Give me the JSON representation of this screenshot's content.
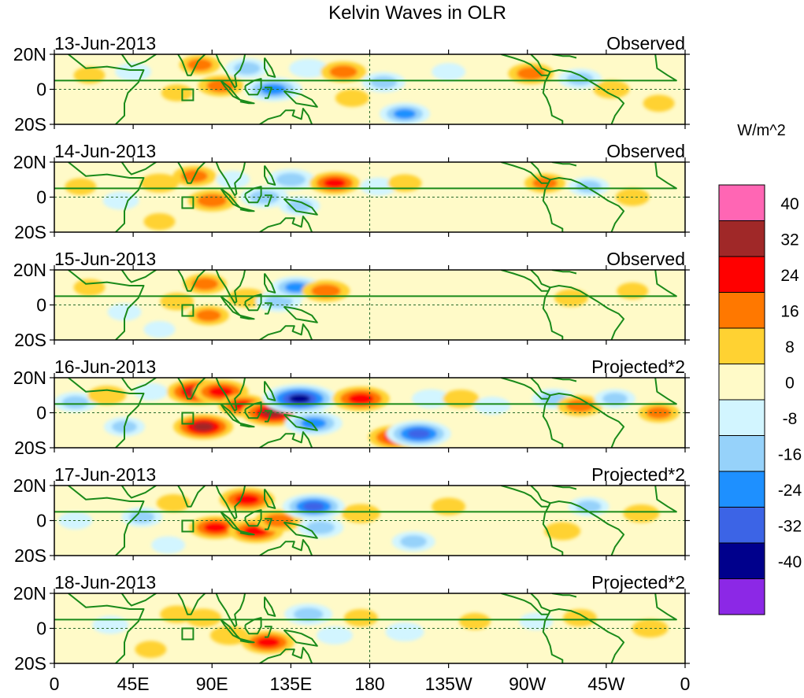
{
  "chart_data": {
    "type": "heatmap",
    "title": "Kelvin Waves in OLR",
    "units": "W/m^2",
    "x_ticks": [
      "0",
      "45E",
      "90E",
      "135E",
      "180",
      "135W",
      "90W",
      "45W",
      "0"
    ],
    "y_ticks": [
      "20N",
      "0",
      "20S"
    ],
    "colorbar": {
      "levels": [
        40,
        32,
        24,
        16,
        8,
        0,
        -8,
        -16,
        -24,
        -32,
        -40
      ],
      "level_labels": [
        "40",
        "32",
        "24",
        "16",
        "8",
        "0",
        "-8",
        "-16",
        "-24",
        "-32",
        "-40"
      ],
      "colors": [
        "#ff66b4",
        "#a02828",
        "#ff0000",
        "#ff7800",
        "#ffd232",
        "#fffac8",
        "#d2f5ff",
        "#96d2fa",
        "#1e90ff",
        "#3c64e6",
        "#00008c",
        "#8c28e6"
      ]
    },
    "panels": [
      {
        "date": "13-Jun-2013",
        "label": "Observed",
        "anomalies": [
          {
            "lon": 20,
            "lat": 8,
            "value": 8
          },
          {
            "lon": 45,
            "lat": 10,
            "value": -12
          },
          {
            "lon": 70,
            "lat": -2,
            "value": 8
          },
          {
            "lon": 83,
            "lat": 14,
            "value": 16
          },
          {
            "lon": 95,
            "lat": 2,
            "value": 20
          },
          {
            "lon": 110,
            "lat": 12,
            "value": -18
          },
          {
            "lon": 125,
            "lat": 0,
            "value": -30
          },
          {
            "lon": 145,
            "lat": 12,
            "value": -14
          },
          {
            "lon": 165,
            "lat": 10,
            "value": 20
          },
          {
            "lon": 170,
            "lat": -5,
            "value": 10
          },
          {
            "lon": 188,
            "lat": 4,
            "value": -18
          },
          {
            "lon": 200,
            "lat": -14,
            "value": -24
          },
          {
            "lon": 225,
            "lat": 10,
            "value": -10
          },
          {
            "lon": 250,
            "lat": -5,
            "value": 6
          },
          {
            "lon": 272,
            "lat": 9,
            "value": 20
          },
          {
            "lon": 300,
            "lat": 6,
            "value": -18
          },
          {
            "lon": 318,
            "lat": 0,
            "value": 12
          },
          {
            "lon": 345,
            "lat": -8,
            "value": 8
          }
        ]
      },
      {
        "date": "14-Jun-2013",
        "label": "Observed",
        "anomalies": [
          {
            "lon": 15,
            "lat": 6,
            "value": 8
          },
          {
            "lon": 38,
            "lat": -2,
            "value": -12
          },
          {
            "lon": 60,
            "lat": 8,
            "value": 14
          },
          {
            "lon": 80,
            "lat": 12,
            "value": 18
          },
          {
            "lon": 90,
            "lat": -2,
            "value": 22
          },
          {
            "lon": 102,
            "lat": 10,
            "value": -10
          },
          {
            "lon": 120,
            "lat": 0,
            "value": -22
          },
          {
            "lon": 135,
            "lat": 10,
            "value": -22
          },
          {
            "lon": 140,
            "lat": -5,
            "value": -16
          },
          {
            "lon": 160,
            "lat": 8,
            "value": 24
          },
          {
            "lon": 185,
            "lat": 6,
            "value": -12
          },
          {
            "lon": 200,
            "lat": 8,
            "value": 10
          },
          {
            "lon": 240,
            "lat": -6,
            "value": 6
          },
          {
            "lon": 280,
            "lat": 8,
            "value": 16
          },
          {
            "lon": 305,
            "lat": 6,
            "value": -16
          },
          {
            "lon": 330,
            "lat": 0,
            "value": 10
          },
          {
            "lon": 60,
            "lat": -14,
            "value": 8
          }
        ]
      },
      {
        "date": "15-Jun-2013",
        "label": "Observed",
        "anomalies": [
          {
            "lon": 20,
            "lat": 10,
            "value": 8
          },
          {
            "lon": 40,
            "lat": -4,
            "value": -10
          },
          {
            "lon": 70,
            "lat": 2,
            "value": 10
          },
          {
            "lon": 86,
            "lat": 12,
            "value": 18
          },
          {
            "lon": 88,
            "lat": -6,
            "value": 16
          },
          {
            "lon": 110,
            "lat": 4,
            "value": 14
          },
          {
            "lon": 128,
            "lat": 2,
            "value": -20
          },
          {
            "lon": 138,
            "lat": 10,
            "value": -24
          },
          {
            "lon": 155,
            "lat": 8,
            "value": 22
          },
          {
            "lon": 175,
            "lat": 0,
            "value": -6
          },
          {
            "lon": 240,
            "lat": 4,
            "value": 4
          },
          {
            "lon": 295,
            "lat": 4,
            "value": 10
          },
          {
            "lon": 330,
            "lat": 8,
            "value": 8
          },
          {
            "lon": 60,
            "lat": -14,
            "value": -8
          }
        ]
      },
      {
        "date": "16-Jun-2013",
        "label": "Projected*2",
        "anomalies": [
          {
            "lon": 12,
            "lat": 6,
            "value": -18
          },
          {
            "lon": 30,
            "lat": 10,
            "value": 14
          },
          {
            "lon": 40,
            "lat": -8,
            "value": -16
          },
          {
            "lon": 55,
            "lat": 12,
            "value": -10
          },
          {
            "lon": 82,
            "lat": 12,
            "value": 34
          },
          {
            "lon": 95,
            "lat": 12,
            "value": 28
          },
          {
            "lon": 85,
            "lat": -8,
            "value": 32
          },
          {
            "lon": 108,
            "lat": 4,
            "value": 24
          },
          {
            "lon": 125,
            "lat": 0,
            "value": 36
          },
          {
            "lon": 140,
            "lat": 8,
            "value": -44
          },
          {
            "lon": 148,
            "lat": -6,
            "value": -30
          },
          {
            "lon": 175,
            "lat": 8,
            "value": 30
          },
          {
            "lon": 195,
            "lat": -14,
            "value": 28
          },
          {
            "lon": 208,
            "lat": -12,
            "value": -36
          },
          {
            "lon": 215,
            "lat": 8,
            "value": -14
          },
          {
            "lon": 232,
            "lat": 8,
            "value": 12
          },
          {
            "lon": 250,
            "lat": 4,
            "value": -12
          },
          {
            "lon": 285,
            "lat": 8,
            "value": -18
          },
          {
            "lon": 300,
            "lat": 4,
            "value": 20
          },
          {
            "lon": 320,
            "lat": 8,
            "value": -16
          },
          {
            "lon": 345,
            "lat": 0,
            "value": 16
          }
        ]
      },
      {
        "date": "17-Jun-2013",
        "label": "Projected*2",
        "anomalies": [
          {
            "lon": 12,
            "lat": 0,
            "value": -10
          },
          {
            "lon": 50,
            "lat": 2,
            "value": -16
          },
          {
            "lon": 68,
            "lat": 10,
            "value": 10
          },
          {
            "lon": 92,
            "lat": -4,
            "value": 26
          },
          {
            "lon": 110,
            "lat": 12,
            "value": 28
          },
          {
            "lon": 115,
            "lat": -6,
            "value": 28
          },
          {
            "lon": 128,
            "lat": 0,
            "value": 22
          },
          {
            "lon": 148,
            "lat": 8,
            "value": -34
          },
          {
            "lon": 152,
            "lat": -4,
            "value": -20
          },
          {
            "lon": 175,
            "lat": 4,
            "value": 14
          },
          {
            "lon": 205,
            "lat": -12,
            "value": -18
          },
          {
            "lon": 225,
            "lat": 8,
            "value": 10
          },
          {
            "lon": 290,
            "lat": -6,
            "value": 12
          },
          {
            "lon": 305,
            "lat": 8,
            "value": -16
          },
          {
            "lon": 335,
            "lat": 4,
            "value": 12
          },
          {
            "lon": 65,
            "lat": -14,
            "value": -10
          }
        ]
      },
      {
        "date": "18-Jun-2013",
        "label": "Projected*2",
        "anomalies": [
          {
            "lon": 10,
            "lat": 10,
            "value": 6
          },
          {
            "lon": 32,
            "lat": 2,
            "value": -12
          },
          {
            "lon": 70,
            "lat": 8,
            "value": 10
          },
          {
            "lon": 85,
            "lat": 6,
            "value": 12
          },
          {
            "lon": 100,
            "lat": -4,
            "value": 14
          },
          {
            "lon": 122,
            "lat": -8,
            "value": 26
          },
          {
            "lon": 145,
            "lat": 8,
            "value": -22
          },
          {
            "lon": 160,
            "lat": -4,
            "value": -12
          },
          {
            "lon": 175,
            "lat": 6,
            "value": 10
          },
          {
            "lon": 200,
            "lat": -2,
            "value": -14
          },
          {
            "lon": 240,
            "lat": 4,
            "value": 8
          },
          {
            "lon": 275,
            "lat": 4,
            "value": -10
          },
          {
            "lon": 300,
            "lat": 6,
            "value": 10
          },
          {
            "lon": 340,
            "lat": 0,
            "value": 12
          },
          {
            "lon": 55,
            "lat": -12,
            "value": 8
          }
        ]
      }
    ]
  }
}
